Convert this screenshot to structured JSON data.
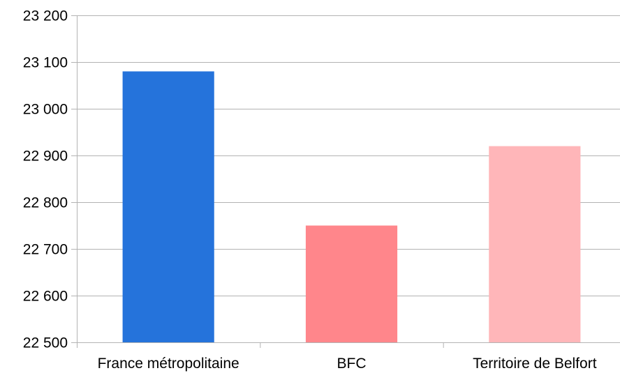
{
  "chart_data": {
    "type": "bar",
    "title": "",
    "xlabel": "",
    "ylabel": "",
    "categories": [
      "France métropolitaine",
      "BFC",
      "Territoire de Belfort"
    ],
    "values": [
      23080,
      22750,
      22920
    ],
    "colors": [
      "#2573DB",
      "#FF868B",
      "#FFB6B9"
    ],
    "ylim": [
      22500,
      23200
    ],
    "yticks": [
      22500,
      22600,
      22700,
      22800,
      22900,
      23000,
      23100,
      23200
    ],
    "ytick_labels": [
      "22 500",
      "22 600",
      "22 700",
      "22 800",
      "22 900",
      "23 000",
      "23 100",
      "23 200"
    ],
    "grid": true,
    "grid_color": "#B3B3B3",
    "legend": "none"
  }
}
